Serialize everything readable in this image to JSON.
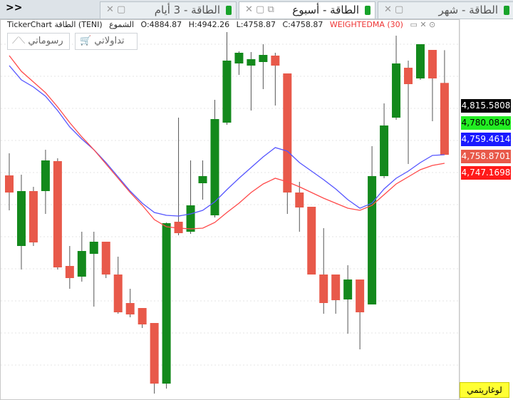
{
  "tabs": [
    {
      "label": "الطاقة - 3 أيام",
      "active": false
    },
    {
      "label": "الطاقة - أسبوع",
      "active": true
    },
    {
      "label": "الطاقة - شهر",
      "active": false
    }
  ],
  "nav": ">>",
  "info": {
    "name": "TickerChart الطاقة (TENI)",
    "style": "الشموع",
    "open": "O:4884.87",
    "high": "H:4942.26",
    "low": "L:4758.87",
    "close": "C:4758.87",
    "indicator": "WEIGHTEDMA (30)"
  },
  "toolbar": [
    "رسوماتي",
    "تداولاتي"
  ],
  "log_button": "لوغاريتمي",
  "price_labels": [
    {
      "label": "4,815.5808",
      "color": "#000000",
      "text_color": "#ffffff"
    },
    {
      "label": "4,780.0840",
      "color": "#22ee22",
      "text_color": "#000000"
    },
    {
      "label": "4,759.4614",
      "color": "#1a1aff",
      "text_color": "#ffffff"
    },
    {
      "label": "4,758.8701",
      "color": "#e8594a",
      "text_color": "#ffffff"
    },
    {
      "label": "4,747.1698",
      "color": "#ff1a1a",
      "text_color": "#ffffff"
    }
  ],
  "chart_data": {
    "type": "candlestick",
    "up_color": "#13891c",
    "down_color": "#e8594a",
    "ylim": [
      4336.5,
      4980.25
    ],
    "open": [
      4722.75,
      4599,
      4695.25,
      4695.25,
      4747.75,
      4564,
      4545.25,
      4585.25,
      4606.5,
      4549,
      4499,
      4490.25,
      4464,
      4357.75,
      4641.5,
      4624,
      4709,
      4652.75,
      4815.25,
      4919,
      4915.25,
      4921.5,
      4932.75,
      4901.5,
      4692.75,
      4667.75,
      4549,
      4549,
      4505.25,
      4540.25,
      4496.5,
      4721.5,
      4824,
      4911.5,
      4892.75,
      4942.75,
      4884.87
    ],
    "high": [
      4761.5,
      4724,
      4702.75,
      4767.75,
      4752.75,
      4599,
      4624,
      4624,
      4606.5,
      4580.25,
      4524,
      4490.25,
      4464,
      4640.25,
      4824,
      4749,
      4749,
      4855.25,
      4974,
      4940.25,
      4939,
      4952.75,
      4937.75,
      4901.5,
      4711.5,
      4667.75,
      4630.25,
      4549,
      4565.25,
      4540.25,
      4774,
      4849,
      4967.75,
      4924,
      4952.75,
      4942.75,
      4942.26
    ],
    "low": [
      4661.5,
      4557.75,
      4599,
      4655.25,
      4557.75,
      4524,
      4536.5,
      4492.75,
      4542.75,
      4480.25,
      4474,
      4455.25,
      4340.25,
      4349,
      4617.75,
      4620.25,
      4680.25,
      4649,
      4811.5,
      4899,
      4836.5,
      4874,
      4845.25,
      4655.25,
      4624,
      4549,
      4480.25,
      4480.25,
      4445.25,
      4417.75,
      4496.5,
      4717.75,
      4820.25,
      4742.75,
      4890.25,
      4817.75,
      4758.87
    ],
    "close": [
      4692.75,
      4695.25,
      4605.25,
      4749,
      4561.5,
      4542.75,
      4590.25,
      4606.5,
      4549,
      4482.75,
      4479,
      4461.5,
      4357.75,
      4639,
      4621.5,
      4670.25,
      4721.5,
      4821.5,
      4924,
      4937.75,
      4926.5,
      4934,
      4915.25,
      4692.75,
      4666.5,
      4549,
      4499,
      4504,
      4540.25,
      4482.75,
      4721.5,
      4810.25,
      4919,
      4882.75,
      4952.75,
      4892.75,
      4758.87
    ],
    "series": [
      {
        "color": "#5555ff",
        "values": [
          4915.25,
          4890.25,
          4877.75,
          4861.5,
          4836.5,
          4807.75,
          4786.5,
          4767.75,
          4745.25,
          4720.25,
          4695.25,
          4674,
          4657.75,
          4652.75,
          4651.5,
          4655.25,
          4661.5,
          4676.5,
          4697.75,
          4717.75,
          4736.5,
          4755.25,
          4771.5,
          4765.25,
          4745.25,
          4730.25,
          4715.25,
          4699,
          4680.25,
          4665.25,
          4674,
          4699,
          4717.75,
          4730.25,
          4745.25,
          4757.75,
          4759
        ]
      },
      {
        "color": "#ff4a4a",
        "values": [
          4932.75,
          4905.25,
          4886.5,
          4867.75,
          4842.75,
          4815.25,
          4790.25,
          4767.75,
          4742.75,
          4717.75,
          4692.75,
          4670.25,
          4645.25,
          4632.75,
          4630.25,
          4629,
          4630.25,
          4640.25,
          4657.75,
          4674,
          4692.75,
          4707.75,
          4717.75,
          4711.5,
          4702.75,
          4692.75,
          4682.75,
          4674,
          4665.25,
          4661.5,
          4670.25,
          4689,
          4707.75,
          4720.25,
          4732.75,
          4740.25,
          4744
        ]
      }
    ]
  }
}
